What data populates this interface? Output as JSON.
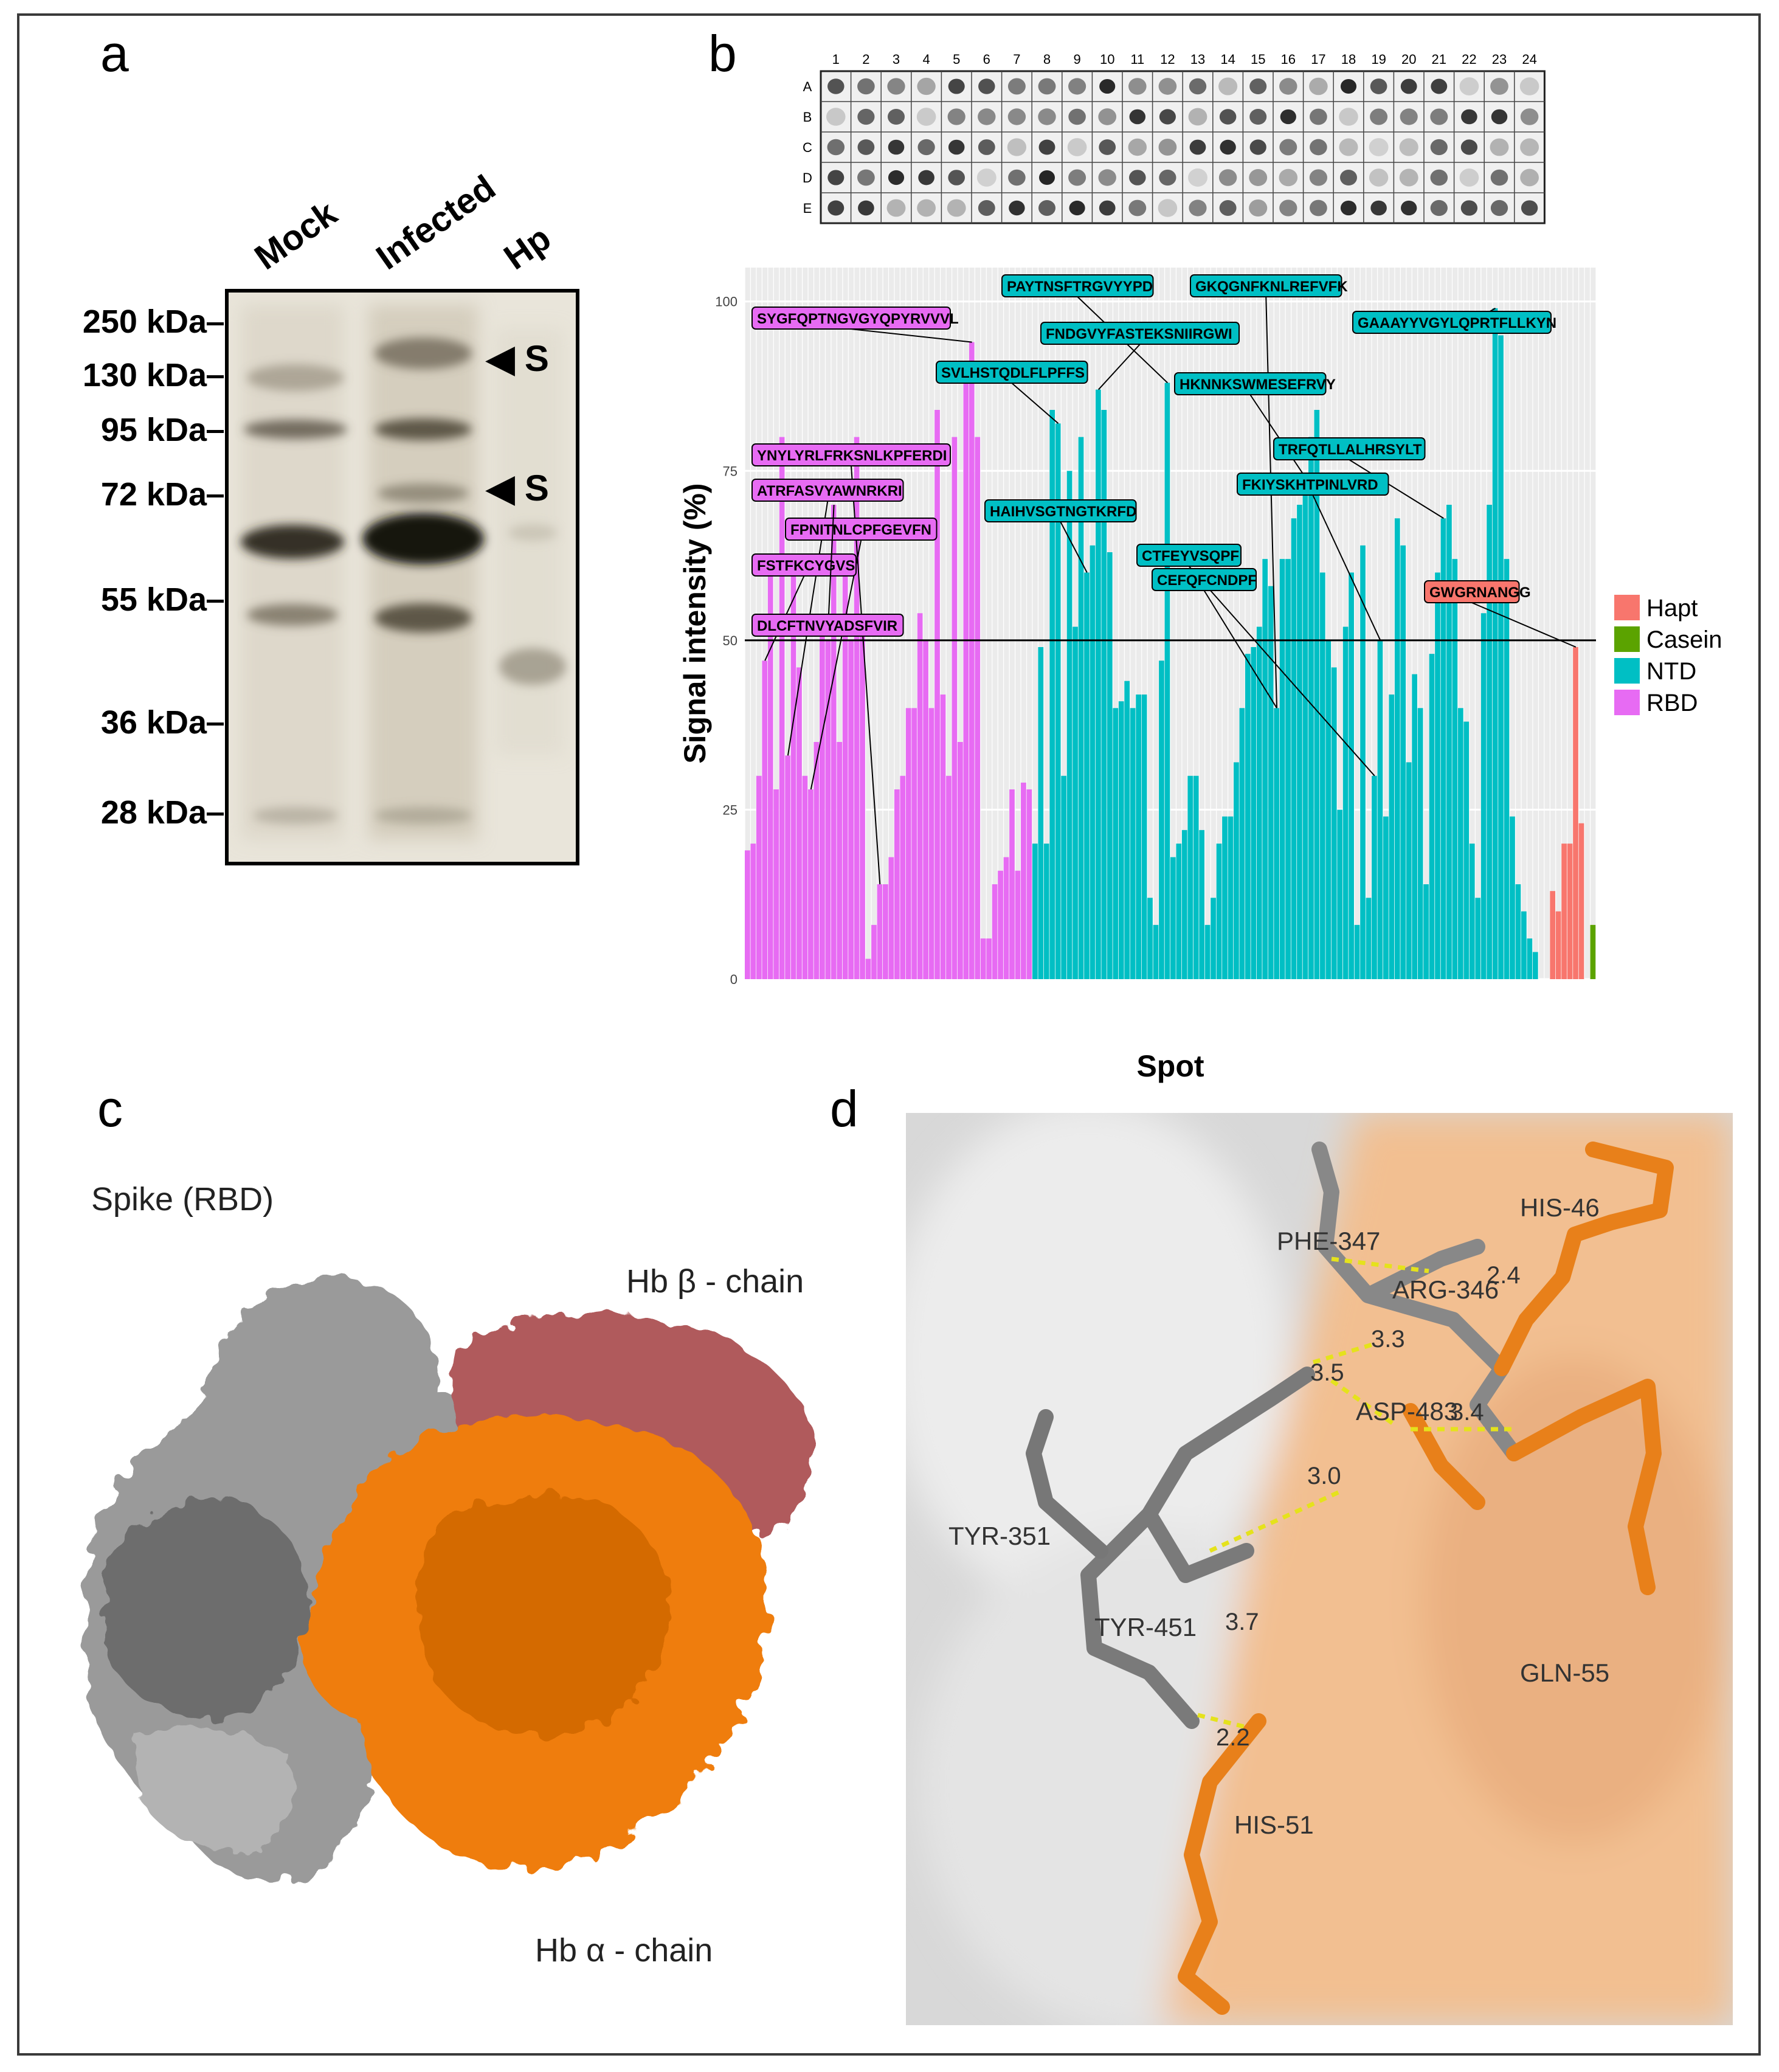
{
  "panels": {
    "a": {
      "letter": "a",
      "lanes": [
        "Mock",
        "Infected",
        "Hp"
      ],
      "markers": [
        "250 kDa",
        "130 kDa",
        "95 kDa",
        "72 kDa",
        "55 kDa",
        "36 kDa",
        "28 kDa"
      ],
      "band_labels": [
        "S",
        "S"
      ]
    },
    "b": {
      "letter": "b",
      "array_rows": [
        "A",
        "B",
        "C",
        "D",
        "E"
      ],
      "array_cols": [
        "1",
        "2",
        "3",
        "4",
        "5",
        "6",
        "7",
        "8",
        "9",
        "10",
        "11",
        "12",
        "13",
        "14",
        "15",
        "16",
        "17",
        "18",
        "19",
        "20",
        "21",
        "22",
        "23",
        "24"
      ],
      "legend": [
        {
          "label": "Hapt",
          "color": "#f8766d"
        },
        {
          "label": "Casein",
          "color": "#5ba300"
        },
        {
          "label": "NTD",
          "color": "#00bfc4"
        },
        {
          "label": "RBD",
          "color": "#e76bf3"
        }
      ]
    },
    "c": {
      "letter": "c",
      "labels": [
        "Spike (RBD)",
        "Hb β - chain",
        "Hb α - chain"
      ]
    },
    "d": {
      "letter": "d",
      "residues": [
        "HIS-46",
        "PHE-347",
        "ARG-346",
        "TYR-351",
        "ASP-483",
        "TYR-451",
        "GLN-55",
        "HIS-51"
      ],
      "distances": [
        "2.4",
        "3.3",
        "3.5",
        "3.4",
        "3.0",
        "3.7",
        "2.2"
      ]
    }
  },
  "chart_data": {
    "type": "bar",
    "xlabel": "Spot",
    "ylabel": "Signal intensity (%)",
    "ylim": [
      0,
      105
    ],
    "y_ticks": [
      0,
      25,
      50,
      75,
      100
    ],
    "threshold": 50,
    "series": [
      {
        "name": "RBD",
        "color": "#e76bf3",
        "values": [
          19,
          20,
          30,
          47,
          62,
          28,
          80,
          33,
          60,
          46,
          30,
          28,
          35,
          52,
          50,
          70,
          35,
          60,
          50,
          80,
          52,
          3,
          8,
          14,
          14,
          18,
          28,
          30,
          40,
          40,
          54,
          50,
          40,
          84,
          42,
          30,
          80,
          35,
          90,
          94,
          80,
          6,
          6,
          14,
          16,
          18,
          28,
          16,
          29,
          28
        ]
      },
      {
        "name": "NTD",
        "color": "#00bfc4",
        "values": [
          20,
          49,
          20,
          84,
          82,
          30,
          75,
          52,
          80,
          60,
          64,
          87,
          84,
          63,
          40,
          41,
          44,
          40,
          42,
          42,
          12,
          8,
          47,
          88,
          18,
          20,
          22,
          30,
          30,
          22,
          8,
          12,
          20,
          24,
          24,
          32,
          40,
          48,
          49,
          52,
          62,
          58,
          40,
          62,
          62,
          68,
          70,
          74,
          80,
          84,
          60,
          50,
          46,
          25,
          52,
          60,
          8,
          64,
          12,
          30,
          50,
          24,
          42,
          68,
          64,
          32,
          45,
          40,
          14,
          48,
          60,
          68,
          70,
          62,
          40,
          38,
          20,
          12,
          54,
          70,
          99,
          95,
          62,
          24,
          14,
          10,
          6,
          4
        ]
      },
      {
        "name": "Hapt",
        "color": "#f8766d",
        "values": [
          13,
          10,
          20,
          20,
          49,
          23
        ]
      },
      {
        "name": "Casein",
        "color": "#5ba300",
        "values": [
          8
        ]
      }
    ],
    "annotations": [
      "SYGFQPTNGVGYQPYRVVVL",
      "YNYLYRLFRKSNLKPFERDI",
      "ATRFASVYAWNRKRI",
      "FPNITNLCPFGEVFN",
      "FSTFKCYGVS",
      "DLCFTNVYADSFVIR",
      "PAYTNSFTRGVYYPD",
      "FNDGVYFASTEKSNIIRGWI",
      "SVLHSTQDLFLPFFS",
      "GKQGNFKNLREFVFK",
      "GAAAYYVGYLQPRTFLLKYN",
      "HKNNKSWMESEFRVY",
      "HAIHVSGTNGTKRFD",
      "CTFEYVSQPF",
      "CEFQFCNDPF",
      "TRFQTLLALHRSYLT",
      "FKIYSKHTPINLVRD",
      "GWGRNANGG"
    ]
  }
}
